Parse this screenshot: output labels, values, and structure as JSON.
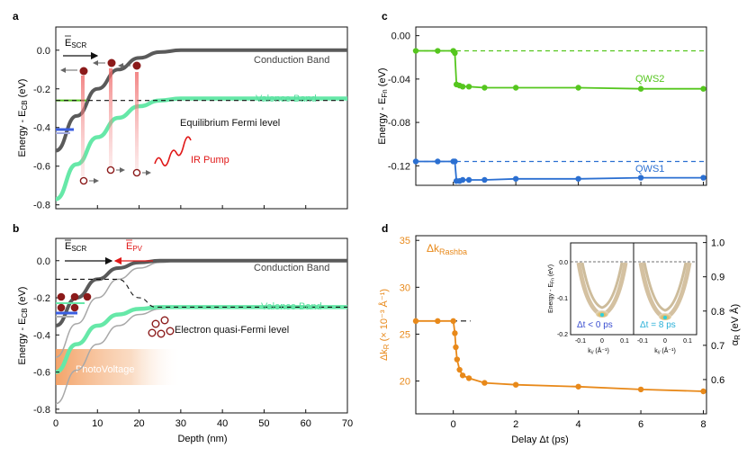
{
  "colors": {
    "cb": "#5a5a5a",
    "vb": "#66e8a8",
    "qws2": "#55c61e",
    "qws1": "#2b6fd1",
    "orange": "#e8891a",
    "red": "#e01818",
    "dark_red": "#8b1a1a",
    "blue_level": "#3a5ee0",
    "black": "#111111"
  },
  "chart_data": [
    {
      "id": "a",
      "panel_label": "a",
      "type": "line",
      "title": "",
      "xlabel": "",
      "ylabel": "Energy - E",
      "ylabel_sub": "CB",
      "ylabel_unit": " (eV)",
      "xlim": [
        0,
        70
      ],
      "ylim": [
        -0.82,
        0.12
      ],
      "y_ticks": [
        0.0,
        -0.2,
        -0.4,
        -0.6,
        -0.8
      ],
      "y_tick_labels": [
        "0.0",
        "-0.2",
        "-0.4",
        "-0.6",
        "-0.8"
      ],
      "series": [
        {
          "name": "Conduction Band",
          "x": [
            0,
            5,
            10,
            15,
            20,
            25,
            30,
            35,
            40,
            50,
            60,
            70
          ],
          "values": [
            -0.52,
            -0.34,
            -0.2,
            -0.1,
            -0.04,
            -0.01,
            0.0,
            0.0,
            0.0,
            0.0,
            0.0,
            0.0
          ]
        },
        {
          "name": "Valence Band",
          "x": [
            0,
            5,
            10,
            15,
            20,
            25,
            30,
            35,
            40,
            50,
            60,
            70
          ],
          "values": [
            -0.77,
            -0.59,
            -0.45,
            -0.35,
            -0.29,
            -0.26,
            -0.25,
            -0.25,
            -0.25,
            -0.25,
            -0.25,
            -0.25
          ]
        }
      ],
      "fermi_level": -0.26,
      "annotations": {
        "cb_label": "Conduction Band",
        "vb_label": "Valence Band",
        "fermi_label": "Equilibrium Fermi level",
        "pump_label": "IR Pump",
        "field_label": "E",
        "field_sub": "SCR"
      }
    },
    {
      "id": "b",
      "panel_label": "b",
      "type": "line",
      "title": "",
      "xlabel": "Depth (nm)",
      "ylabel": "Energy - E",
      "ylabel_sub": "CB",
      "ylabel_unit": " (eV)",
      "xlim": [
        0,
        70
      ],
      "ylim": [
        -0.82,
        0.12
      ],
      "x_ticks": [
        0,
        10,
        20,
        30,
        40,
        50,
        60,
        70
      ],
      "x_tick_labels": [
        "0",
        "10",
        "20",
        "30",
        "40",
        "50",
        "60",
        "70"
      ],
      "y_ticks": [
        0.0,
        -0.2,
        -0.4,
        -0.6,
        -0.8
      ],
      "y_tick_labels": [
        "0.0",
        "-0.2",
        "-0.4",
        "-0.6",
        "-0.8"
      ],
      "series": [
        {
          "name": "Conduction Band",
          "x": [
            0,
            5,
            10,
            15,
            20,
            25,
            30,
            35,
            40,
            50,
            60,
            70
          ],
          "values": [
            -0.35,
            -0.2,
            -0.1,
            -0.04,
            -0.01,
            0.0,
            0.0,
            0.0,
            0.0,
            0.0,
            0.0,
            0.0
          ]
        },
        {
          "name": "Valence Band",
          "x": [
            0,
            5,
            10,
            15,
            20,
            25,
            30,
            35,
            40,
            50,
            60,
            70
          ],
          "values": [
            -0.6,
            -0.45,
            -0.35,
            -0.29,
            -0.26,
            -0.25,
            -0.25,
            -0.25,
            -0.25,
            -0.25,
            -0.25,
            -0.25
          ]
        },
        {
          "name": "Equilibrium CB",
          "x": [
            0,
            5,
            10,
            15,
            20,
            25,
            30,
            35,
            40,
            50,
            70
          ],
          "values": [
            -0.52,
            -0.34,
            -0.2,
            -0.1,
            -0.04,
            -0.01,
            0.0,
            0.0,
            0.0,
            0.0,
            0.0
          ]
        },
        {
          "name": "Equilibrium VB",
          "x": [
            0,
            5,
            10,
            15,
            20,
            25,
            30,
            35,
            40,
            50,
            70
          ],
          "values": [
            -0.77,
            -0.59,
            -0.45,
            -0.35,
            -0.29,
            -0.26,
            -0.25,
            -0.25,
            -0.25,
            -0.25,
            -0.25
          ]
        }
      ],
      "quasi_fermi": {
        "x": [
          0,
          15,
          20,
          24,
          70
        ],
        "values": [
          -0.1,
          -0.1,
          -0.2,
          -0.25,
          -0.25
        ]
      },
      "annotations": {
        "cb_label": "Conduction Band",
        "vb_label": "Valence Band",
        "quasi_label": "Electron quasi-Fermi level",
        "pv_label": "PhotoVoltage",
        "field_label": "E",
        "field_sub": "SCR",
        "pv_field_label": "E",
        "pv_field_sub": "PV"
      }
    },
    {
      "id": "c",
      "panel_label": "c",
      "type": "line",
      "title": "",
      "xlabel": "",
      "ylabel": "Energy - E",
      "ylabel_sub": "Fn",
      "ylabel_unit": " (eV)",
      "xlim": [
        -1.2,
        8.1
      ],
      "ylim": [
        -0.138,
        0.008
      ],
      "y_ticks": [
        0.0,
        -0.04,
        -0.08,
        -0.12
      ],
      "y_tick_labels": [
        "0.00",
        "-0.04",
        "-0.08",
        "-0.12"
      ],
      "series": [
        {
          "name": "QWS2",
          "x": [
            -1.2,
            -0.5,
            0.0,
            0.05,
            0.1,
            0.2,
            0.3,
            0.5,
            1.0,
            2.0,
            4.0,
            6.0,
            8.0
          ],
          "values": [
            -0.014,
            -0.014,
            -0.014,
            -0.016,
            -0.045,
            -0.046,
            -0.047,
            -0.047,
            -0.048,
            -0.048,
            -0.048,
            -0.049,
            -0.049
          ]
        },
        {
          "name": "QWS1",
          "x": [
            -1.2,
            -0.5,
            0.0,
            0.05,
            0.1,
            0.2,
            0.3,
            0.5,
            1.0,
            2.0,
            4.0,
            6.0,
            8.0
          ],
          "values": [
            -0.116,
            -0.116,
            -0.116,
            -0.116,
            -0.134,
            -0.134,
            -0.133,
            -0.133,
            -0.133,
            -0.132,
            -0.132,
            -0.131,
            -0.131
          ]
        }
      ],
      "reference_lines": [
        -0.014,
        -0.116
      ],
      "annotations": {
        "qws2_label": "QWS2",
        "qws1_label": "QWS1"
      }
    },
    {
      "id": "d",
      "panel_label": "d",
      "type": "line",
      "title": "",
      "xlabel": "Delay Δt (ps)",
      "ylabel": "Δk",
      "ylabel_sub": "R",
      "ylabel_unit": " (× 10⁻³ Å⁻¹)",
      "y2label": "α",
      "y2label_sub": "R",
      "y2label_unit": " (eV Å)",
      "xlim": [
        -1.2,
        8.1
      ],
      "ylim": [
        16.5,
        35.5
      ],
      "y2lim": [
        0.5,
        1.02
      ],
      "x_ticks": [
        0,
        2,
        4,
        6,
        8
      ],
      "x_tick_labels": [
        "0",
        "2",
        "4",
        "6",
        "8"
      ],
      "y_ticks": [
        20,
        25,
        30,
        35
      ],
      "y_tick_labels": [
        "20",
        "25",
        "30",
        "35"
      ],
      "y2_ticks": [
        0.6,
        0.7,
        0.8,
        0.9,
        1.0
      ],
      "y2_tick_labels": [
        "0.6",
        "0.7",
        "0.8",
        "0.9",
        "1.0"
      ],
      "series": [
        {
          "name": "Δk Rashba",
          "x": [
            -1.2,
            -0.5,
            0.0,
            0.05,
            0.08,
            0.12,
            0.2,
            0.3,
            0.5,
            1.0,
            2.0,
            4.0,
            6.0,
            8.0
          ],
          "values": [
            26.4,
            26.4,
            26.4,
            25.1,
            23.6,
            22.3,
            21.2,
            20.6,
            20.3,
            19.8,
            19.6,
            19.4,
            19.1,
            18.9
          ]
        }
      ],
      "reference_line": 26.4,
      "annotations": {
        "series_label": "Δk",
        "series_sub": "Rashba"
      },
      "insets": {
        "ylabel": "Energy - E",
        "ylabel_sub": "Fn",
        "ylabel_unit": " (eV)",
        "y_tick_labels": [
          "0.0",
          "-0.1",
          "-0.2"
        ],
        "x_tick_labels": [
          "-0.1",
          "0",
          "0.1"
        ],
        "x_tick_labels_right": [
          "-0.1",
          "0",
          "0.1"
        ],
        "xlabel": "k",
        "xlabel_sub": "//",
        "xlabel_unit": " (Å⁻¹)",
        "left_label": "Δt < 0 ps",
        "right_label": "Δt = 8 ps"
      }
    }
  ]
}
